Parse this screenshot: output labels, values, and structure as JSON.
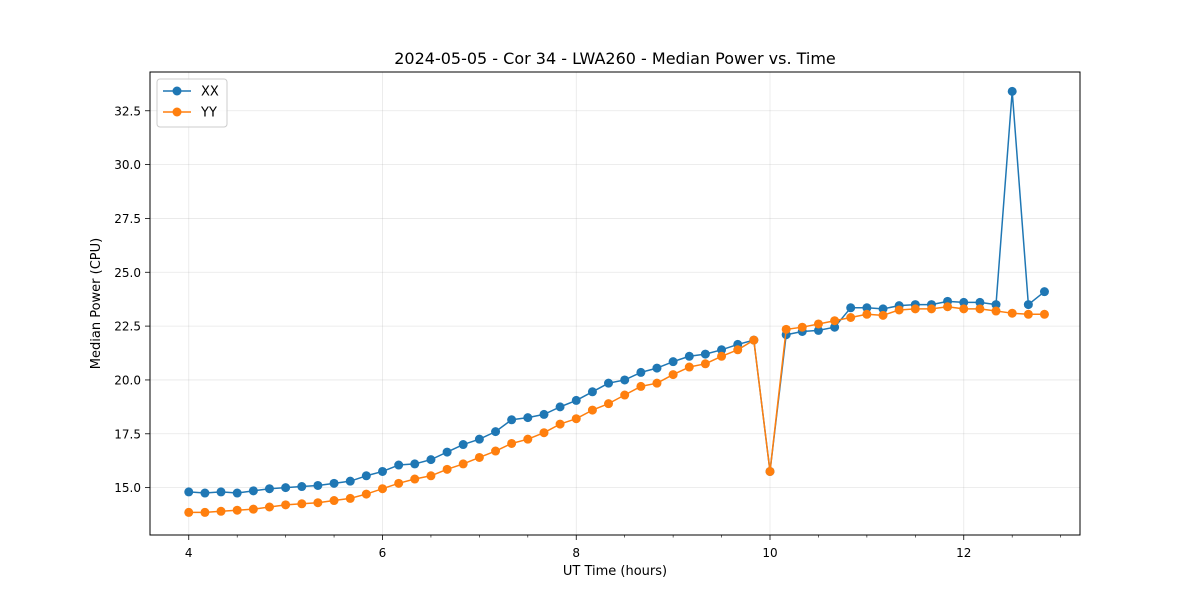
{
  "chart_data": {
    "type": "line",
    "title": "2024-05-05 - Cor 34 - LWA260 - Median Power vs. Time",
    "xlabel": "UT Time (hours)",
    "ylabel": "Median Power (CPU)",
    "xlim": [
      3.6,
      13.2
    ],
    "ylim": [
      12.8,
      34.3
    ],
    "xticks": [
      4,
      6,
      8,
      10,
      12
    ],
    "xtick_labels": [
      "4",
      "6",
      "8",
      "10",
      "12"
    ],
    "yticks": [
      15.0,
      17.5,
      20.0,
      22.5,
      25.0,
      27.5,
      30.0,
      32.5
    ],
    "ytick_labels": [
      "15.0",
      "17.5",
      "20.0",
      "22.5",
      "25.0",
      "27.5",
      "30.0",
      "32.5"
    ],
    "grid": true,
    "legend_position": "upper-left",
    "x": [
      4.0,
      4.167,
      4.333,
      4.5,
      4.667,
      4.833,
      5.0,
      5.167,
      5.333,
      5.5,
      5.667,
      5.833,
      6.0,
      6.167,
      6.333,
      6.5,
      6.667,
      6.833,
      7.0,
      7.167,
      7.333,
      7.5,
      7.667,
      7.833,
      8.0,
      8.167,
      8.333,
      8.5,
      8.667,
      8.833,
      9.0,
      9.167,
      9.333,
      9.5,
      9.667,
      9.833,
      10.0,
      10.167,
      10.333,
      10.5,
      10.667,
      10.833,
      11.0,
      11.167,
      11.333,
      11.5,
      11.667,
      11.833,
      12.0,
      12.167,
      12.333,
      12.5,
      12.667,
      12.833
    ],
    "series": [
      {
        "name": "XX",
        "color": "#1f77b4",
        "values": [
          14.8,
          14.75,
          14.8,
          14.75,
          14.85,
          14.95,
          15.0,
          15.05,
          15.1,
          15.2,
          15.3,
          15.55,
          15.75,
          16.05,
          16.1,
          16.3,
          16.65,
          17.0,
          17.25,
          17.6,
          18.15,
          18.25,
          18.4,
          18.75,
          19.05,
          19.45,
          19.85,
          20.0,
          20.35,
          20.55,
          20.85,
          21.1,
          21.2,
          21.4,
          21.65,
          21.85,
          15.75,
          22.1,
          22.25,
          22.3,
          22.45,
          23.35,
          23.35,
          23.3,
          23.45,
          23.5,
          23.5,
          23.65,
          23.6,
          23.6,
          23.5,
          33.4,
          23.5,
          24.1
        ]
      },
      {
        "name": "YY",
        "color": "#ff7f0e",
        "values": [
          13.85,
          13.85,
          13.9,
          13.95,
          14.0,
          14.1,
          14.2,
          14.25,
          14.3,
          14.4,
          14.5,
          14.7,
          14.95,
          15.2,
          15.4,
          15.55,
          15.85,
          16.1,
          16.4,
          16.7,
          17.05,
          17.25,
          17.55,
          17.95,
          18.2,
          18.6,
          18.9,
          19.3,
          19.7,
          19.85,
          20.25,
          20.6,
          20.75,
          21.1,
          21.4,
          21.85,
          15.75,
          22.35,
          22.45,
          22.6,
          22.75,
          22.9,
          23.05,
          23.0,
          23.25,
          23.3,
          23.3,
          23.4,
          23.3,
          23.3,
          23.2,
          23.1,
          23.05,
          23.05
        ]
      }
    ]
  }
}
